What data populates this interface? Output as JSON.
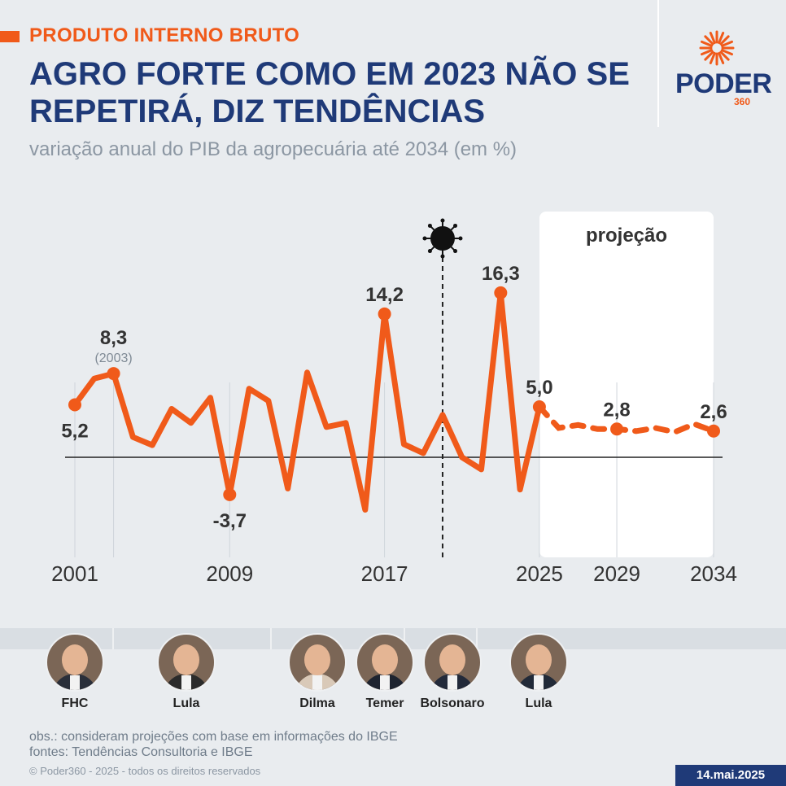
{
  "header": {
    "kicker": "PRODUTO INTERNO BRUTO",
    "title": "AGRO FORTE COMO EM 2023 NÃO SE REPETIRÁ, DIZ TENDÊNCIAS",
    "subtitle": "variação anual do PIB da agropecuária até 2034 (em %)"
  },
  "logo": {
    "word": "PODER",
    "number": "360",
    "accent_color": "#f05a1a",
    "brand_color": "#1f3a78"
  },
  "chart_data": {
    "type": "line",
    "unit": "%",
    "line_color": "#f05a1a",
    "xlim": [
      2001,
      2034
    ],
    "ylim": [
      -7,
      20
    ],
    "actual": {
      "x": [
        2001,
        2002,
        2003,
        2004,
        2005,
        2006,
        2007,
        2008,
        2009,
        2010,
        2011,
        2012,
        2013,
        2014,
        2015,
        2016,
        2017,
        2018,
        2019,
        2020,
        2021,
        2022,
        2023,
        2024,
        2025
      ],
      "y": [
        5.2,
        7.8,
        8.3,
        2.0,
        1.2,
        4.8,
        3.4,
        5.9,
        -3.7,
        6.8,
        5.6,
        -3.1,
        8.4,
        3.0,
        3.4,
        -5.2,
        14.2,
        1.3,
        0.4,
        4.2,
        0.0,
        -1.2,
        16.3,
        -3.2,
        5.0
      ]
    },
    "projection": {
      "label": "projeção",
      "x": [
        2025,
        2026,
        2027,
        2028,
        2029,
        2030,
        2031,
        2032,
        2033,
        2034
      ],
      "y": [
        5.0,
        2.9,
        3.2,
        2.8,
        2.8,
        2.6,
        2.9,
        2.5,
        3.3,
        2.6
      ]
    },
    "x_ticks": [
      2001,
      2009,
      2017,
      2025,
      2029,
      2034
    ],
    "point_labels": [
      {
        "year": 2001,
        "value": 5.2,
        "text": "5,2",
        "pos": "below"
      },
      {
        "year": 2003,
        "value": 8.3,
        "text": "8,3",
        "sub": "(2003)",
        "pos": "above"
      },
      {
        "year": 2009,
        "value": -3.7,
        "text": "-3,7",
        "pos": "below"
      },
      {
        "year": 2017,
        "value": 14.2,
        "text": "14,2",
        "pos": "above"
      },
      {
        "year": 2023,
        "value": 16.3,
        "text": "16,3",
        "pos": "above"
      },
      {
        "year": 2025,
        "value": 5.0,
        "text": "5,0",
        "pos": "above"
      },
      {
        "year": 2029,
        "value": 2.8,
        "text": "2,8",
        "pos": "above"
      },
      {
        "year": 2034,
        "value": 2.6,
        "text": "2,6",
        "pos": "above"
      }
    ],
    "event_marker": {
      "year": 2020,
      "icon": "virus-icon"
    }
  },
  "presidents": [
    {
      "name": "FHC"
    },
    {
      "name": "Lula"
    },
    {
      "name": "Dilma"
    },
    {
      "name": "Temer"
    },
    {
      "name": "Bolsonaro"
    },
    {
      "name": "Lula"
    }
  ],
  "footer": {
    "note": "obs.: consideram projeções com base em informações do IBGE",
    "sources": "fontes: Tendências Consultoria e IBGE",
    "copyright": "© Poder360 - 2025 - todos os direitos reservados",
    "date": "14.mai.2025"
  }
}
